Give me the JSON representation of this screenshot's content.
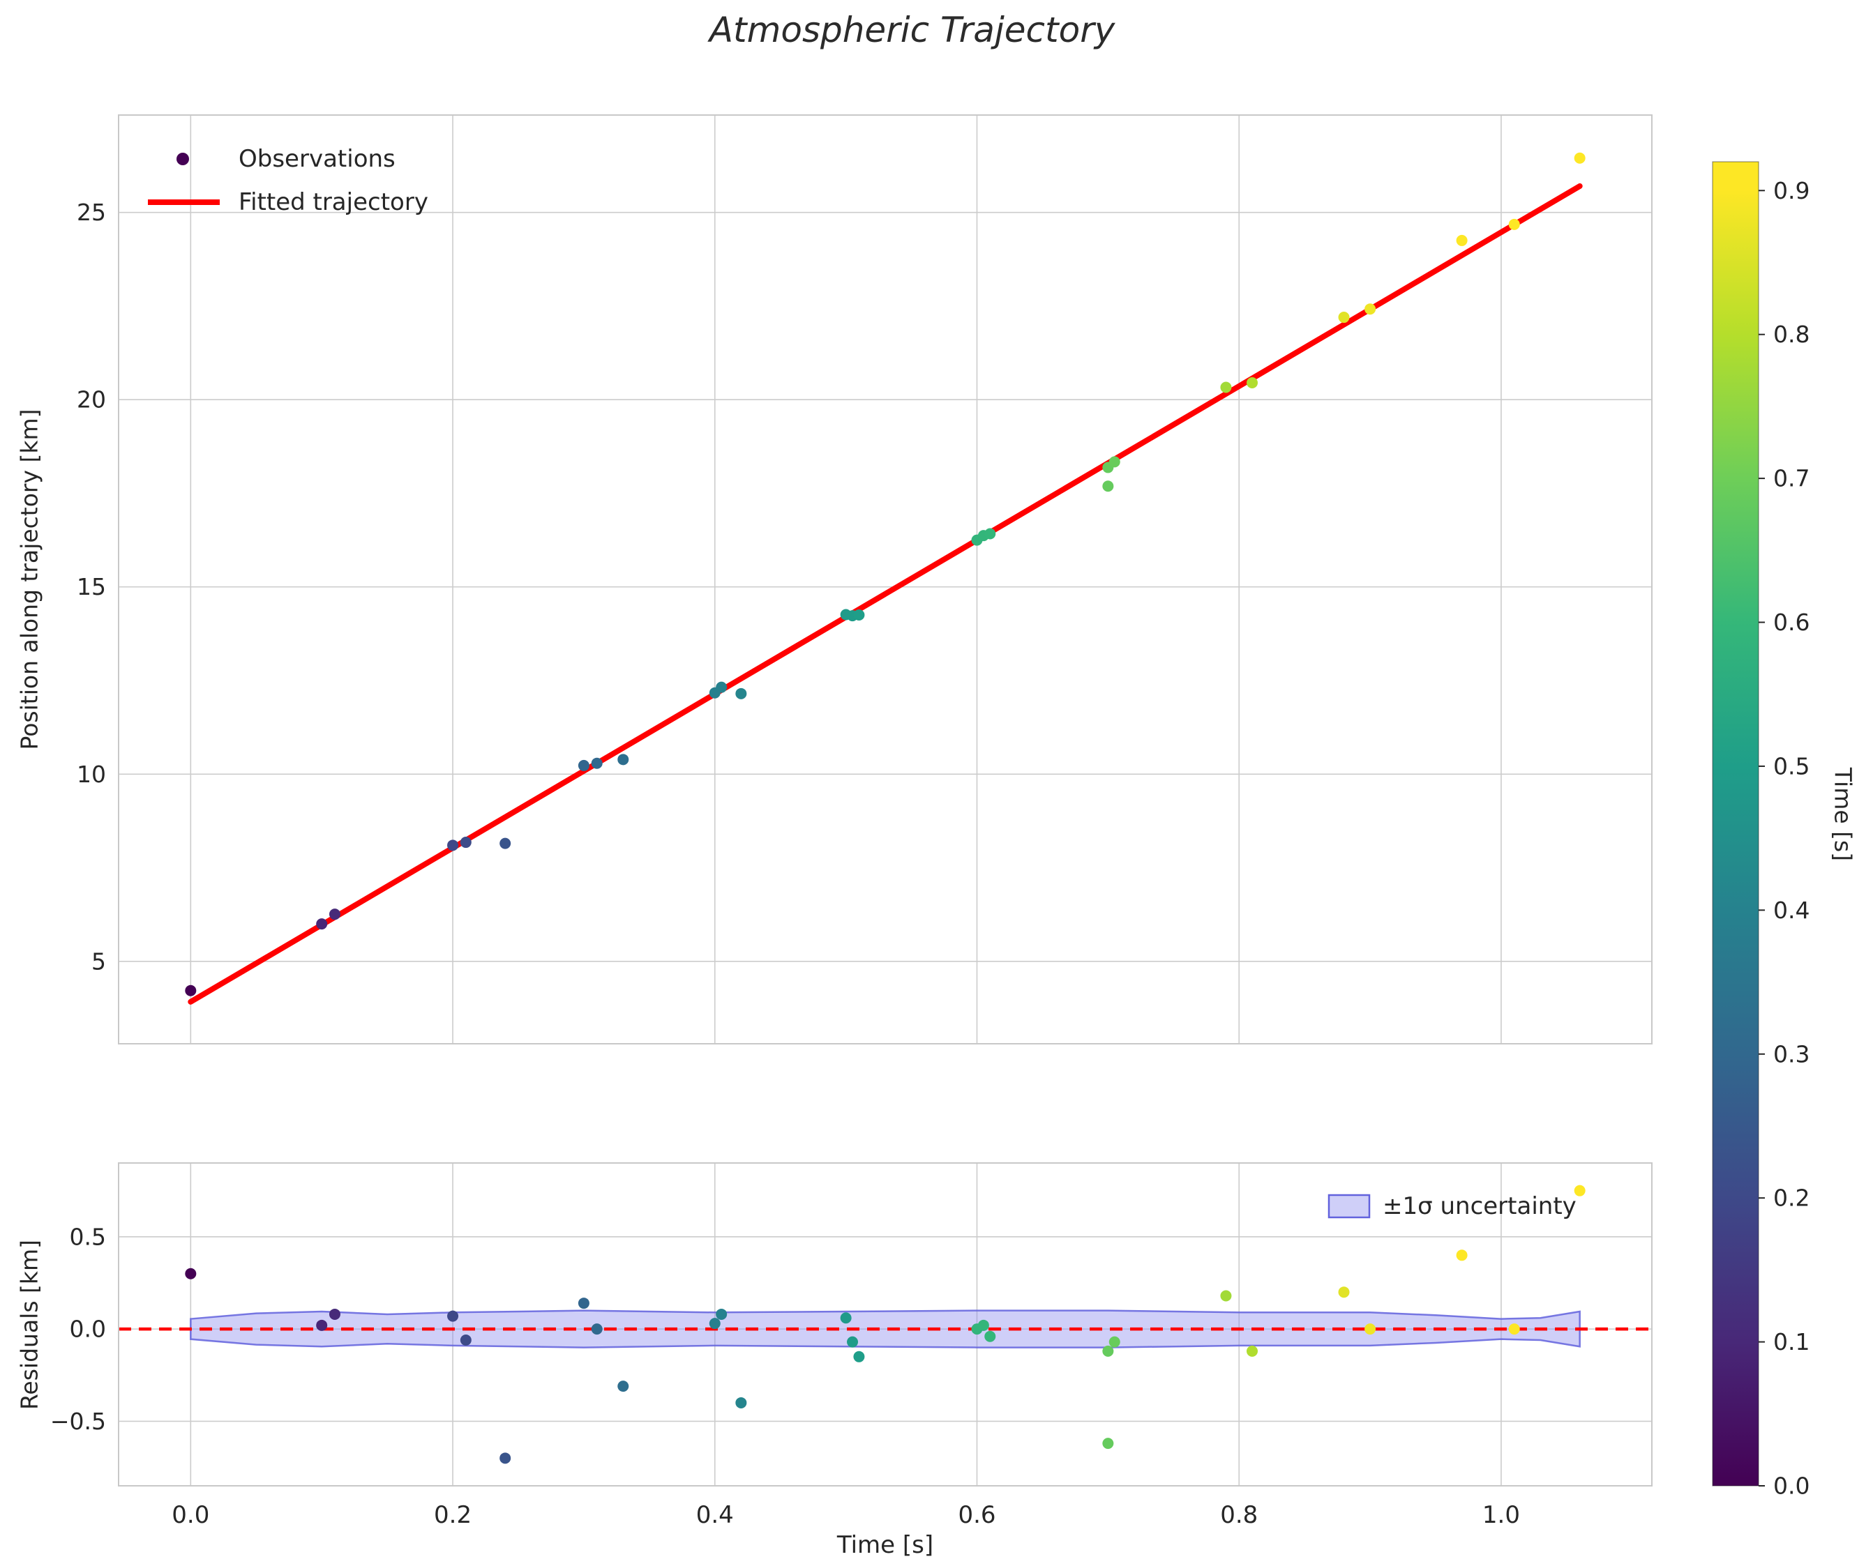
{
  "title": "Atmospheric Trajectory",
  "theme": {
    "text_color": "#262626",
    "grid_color": "#cccccc",
    "spine_color": "#c8c8c8",
    "background": "#ffffff",
    "fit_color": "#ff0000",
    "band_fill": "#8787ee",
    "band_edge": "#6262dd"
  },
  "chart_data": [
    {
      "type": "scatter",
      "title": "Atmospheric Trajectory",
      "ylabel": "Position along trajectory [km]",
      "xlabel": "",
      "xlim": [
        -0.055,
        1.115
      ],
      "ylim": [
        2.8,
        27.6
      ],
      "xtick_values": [
        0.0,
        0.2,
        0.4,
        0.6,
        0.8,
        1.0
      ],
      "xtick_labels": [
        "0.0",
        "0.2",
        "0.4",
        "0.6",
        "0.8",
        "1.0"
      ],
      "ytick_values": [
        5,
        10,
        15,
        20,
        25
      ],
      "ytick_labels": [
        "5",
        "10",
        "15",
        "20",
        "25"
      ],
      "show_xtick_labels": false,
      "grid": true,
      "legend_position": "upper left",
      "legend": [
        {
          "handle": "marker",
          "label": "Observations"
        },
        {
          "handle": "line",
          "label": "Fitted trajectory"
        }
      ],
      "fit": {
        "label": "Fitted trajectory",
        "slope": 20.55,
        "intercept": 3.92,
        "x_start": 0.0,
        "x_end": 1.06
      },
      "points": [
        {
          "t": 0.0,
          "position": 4.22,
          "residual": 0.3
        },
        {
          "t": 0.1,
          "position": 6.0,
          "residual": 0.02
        },
        {
          "t": 0.11,
          "position": 6.26,
          "residual": 0.08
        },
        {
          "t": 0.2,
          "position": 8.1,
          "residual": 0.07
        },
        {
          "t": 0.21,
          "position": 8.18,
          "residual": -0.06
        },
        {
          "t": 0.24,
          "position": 8.15,
          "residual": -0.7
        },
        {
          "t": 0.3,
          "position": 10.23,
          "residual": 0.14
        },
        {
          "t": 0.31,
          "position": 10.29,
          "residual": 0.0
        },
        {
          "t": 0.33,
          "position": 10.39,
          "residual": -0.31
        },
        {
          "t": 0.4,
          "position": 12.17,
          "residual": 0.03
        },
        {
          "t": 0.405,
          "position": 12.32,
          "residual": 0.08
        },
        {
          "t": 0.42,
          "position": 12.15,
          "residual": -0.4
        },
        {
          "t": 0.5,
          "position": 14.26,
          "residual": 0.06
        },
        {
          "t": 0.505,
          "position": 14.23,
          "residual": -0.07
        },
        {
          "t": 0.51,
          "position": 14.25,
          "residual": -0.15
        },
        {
          "t": 0.6,
          "position": 16.25,
          "residual": 0.0
        },
        {
          "t": 0.605,
          "position": 16.37,
          "residual": 0.02
        },
        {
          "t": 0.61,
          "position": 16.42,
          "residual": -0.04
        },
        {
          "t": 0.7,
          "position": 17.69,
          "residual": -0.62
        },
        {
          "t": 0.7,
          "position": 18.19,
          "residual": -0.12
        },
        {
          "t": 0.705,
          "position": 18.34,
          "residual": -0.07
        },
        {
          "t": 0.79,
          "position": 20.33,
          "residual": 0.18
        },
        {
          "t": 0.81,
          "position": 20.45,
          "residual": -0.12
        },
        {
          "t": 0.88,
          "position": 22.2,
          "residual": 0.2
        },
        {
          "t": 0.9,
          "position": 22.42,
          "residual": 0.0
        },
        {
          "t": 0.97,
          "position": 24.25,
          "residual": 0.4
        },
        {
          "t": 1.01,
          "position": 24.68,
          "residual": 0.0
        },
        {
          "t": 1.06,
          "position": 26.45,
          "residual": 0.75
        }
      ]
    },
    {
      "type": "residuals",
      "ylabel": "Residuals [km]",
      "xlabel": "Time [s]",
      "xlim": [
        -0.055,
        1.115
      ],
      "ylim": [
        -0.85,
        0.9
      ],
      "ytick_values": [
        -0.5,
        0.0,
        0.5
      ],
      "ytick_labels": [
        "−0.5",
        "0.0",
        "0.5"
      ],
      "grid": true,
      "zero_line": {
        "y": 0.0,
        "style": "dashed",
        "color": "#ff0000"
      },
      "legend_position": "upper right",
      "legend": [
        {
          "handle": "patch",
          "label": "±1σ uncertainty"
        }
      ],
      "band": {
        "label": "±1σ uncertainty",
        "x": [
          0.0,
          0.05,
          0.1,
          0.15,
          0.2,
          0.3,
          0.4,
          0.5,
          0.6,
          0.7,
          0.8,
          0.9,
          0.95,
          1.0,
          1.03,
          1.06
        ],
        "halfwidth": [
          0.055,
          0.085,
          0.095,
          0.08,
          0.09,
          0.1,
          0.09,
          0.095,
          0.1,
          0.1,
          0.09,
          0.09,
          0.075,
          0.055,
          0.06,
          0.095
        ]
      }
    }
  ],
  "colorbar": {
    "label": "Time [s]",
    "colormap": "viridis",
    "vmin": 0.0,
    "vmax": 0.92,
    "tick_values": [
      0.0,
      0.1,
      0.2,
      0.3,
      0.4,
      0.5,
      0.6,
      0.7,
      0.8,
      0.9
    ],
    "tick_labels": [
      "0.0",
      "0.1",
      "0.2",
      "0.3",
      "0.4",
      "0.5",
      "0.6",
      "0.7",
      "0.8",
      "0.9"
    ],
    "stops": [
      "#440154",
      "#482878",
      "#3e4989",
      "#31688e",
      "#26828e",
      "#1f9e89",
      "#35b779",
      "#6ece58",
      "#b5de2b",
      "#fde725"
    ]
  }
}
